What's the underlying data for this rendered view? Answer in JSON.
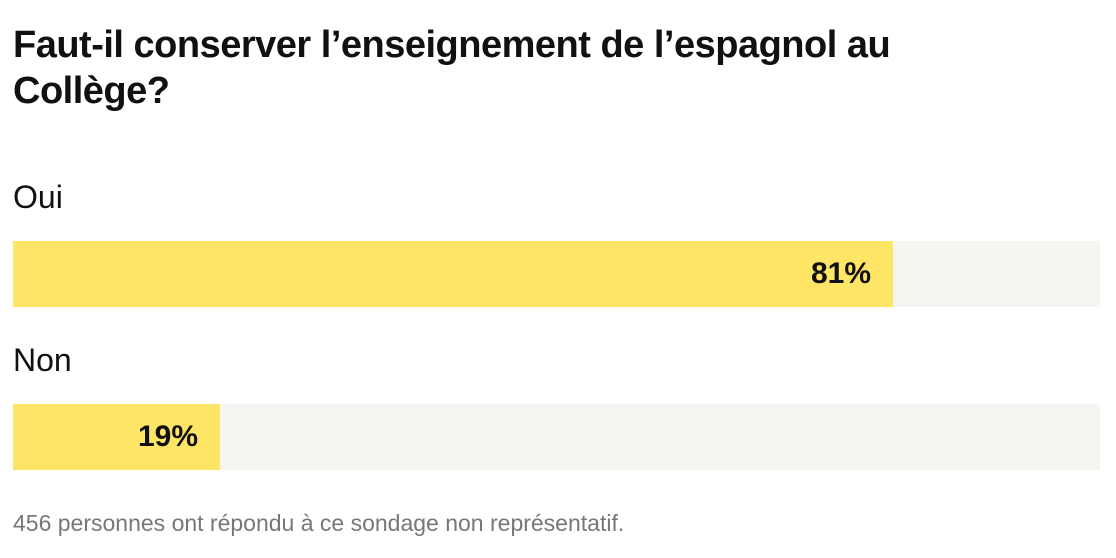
{
  "poll": {
    "title": "Faut-il conserver l’enseignement de l’espagnol au Collège?",
    "footnote": "456 personnes ont répondu à ce sondage non représentatif.",
    "colors": {
      "fill": "#fee566",
      "track": "#f6f5f1",
      "text": "#111111",
      "footnote": "#777777"
    }
  },
  "chart_data": {
    "type": "bar",
    "orientation": "horizontal",
    "title": "Faut-il conserver l’enseignement de l’espagnol au Collège?",
    "categories": [
      "Oui",
      "Non"
    ],
    "values": [
      81,
      19
    ],
    "value_labels": [
      "81%",
      "19%"
    ],
    "unit": "%",
    "xlim": [
      0,
      100
    ],
    "grid": false,
    "legend": "none"
  }
}
